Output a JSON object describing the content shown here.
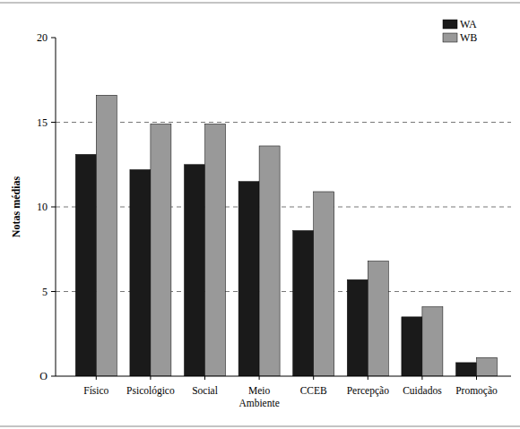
{
  "chart_data": {
    "type": "bar",
    "y_label": "Notas médias",
    "categories": [
      "Físico",
      "Psicológico",
      "Social",
      "Meio Ambiente",
      "CCEB",
      "Percepção",
      "Cuidados",
      "Promoção"
    ],
    "series": [
      {
        "name": "WA",
        "color": "#1a1a1a",
        "values": [
          13.1,
          12.2,
          12.5,
          11.5,
          8.6,
          5.7,
          3.5,
          0.8
        ]
      },
      {
        "name": "WB",
        "color": "#999999",
        "values": [
          16.6,
          14.9,
          14.9,
          13.6,
          10.9,
          6.8,
          4.1,
          1.1
        ]
      }
    ],
    "ylim": [
      0,
      20
    ],
    "yticks": [
      {
        "value": 0,
        "label": "O"
      },
      5,
      10,
      15,
      20
    ],
    "grid": true,
    "legend": "top-right"
  }
}
